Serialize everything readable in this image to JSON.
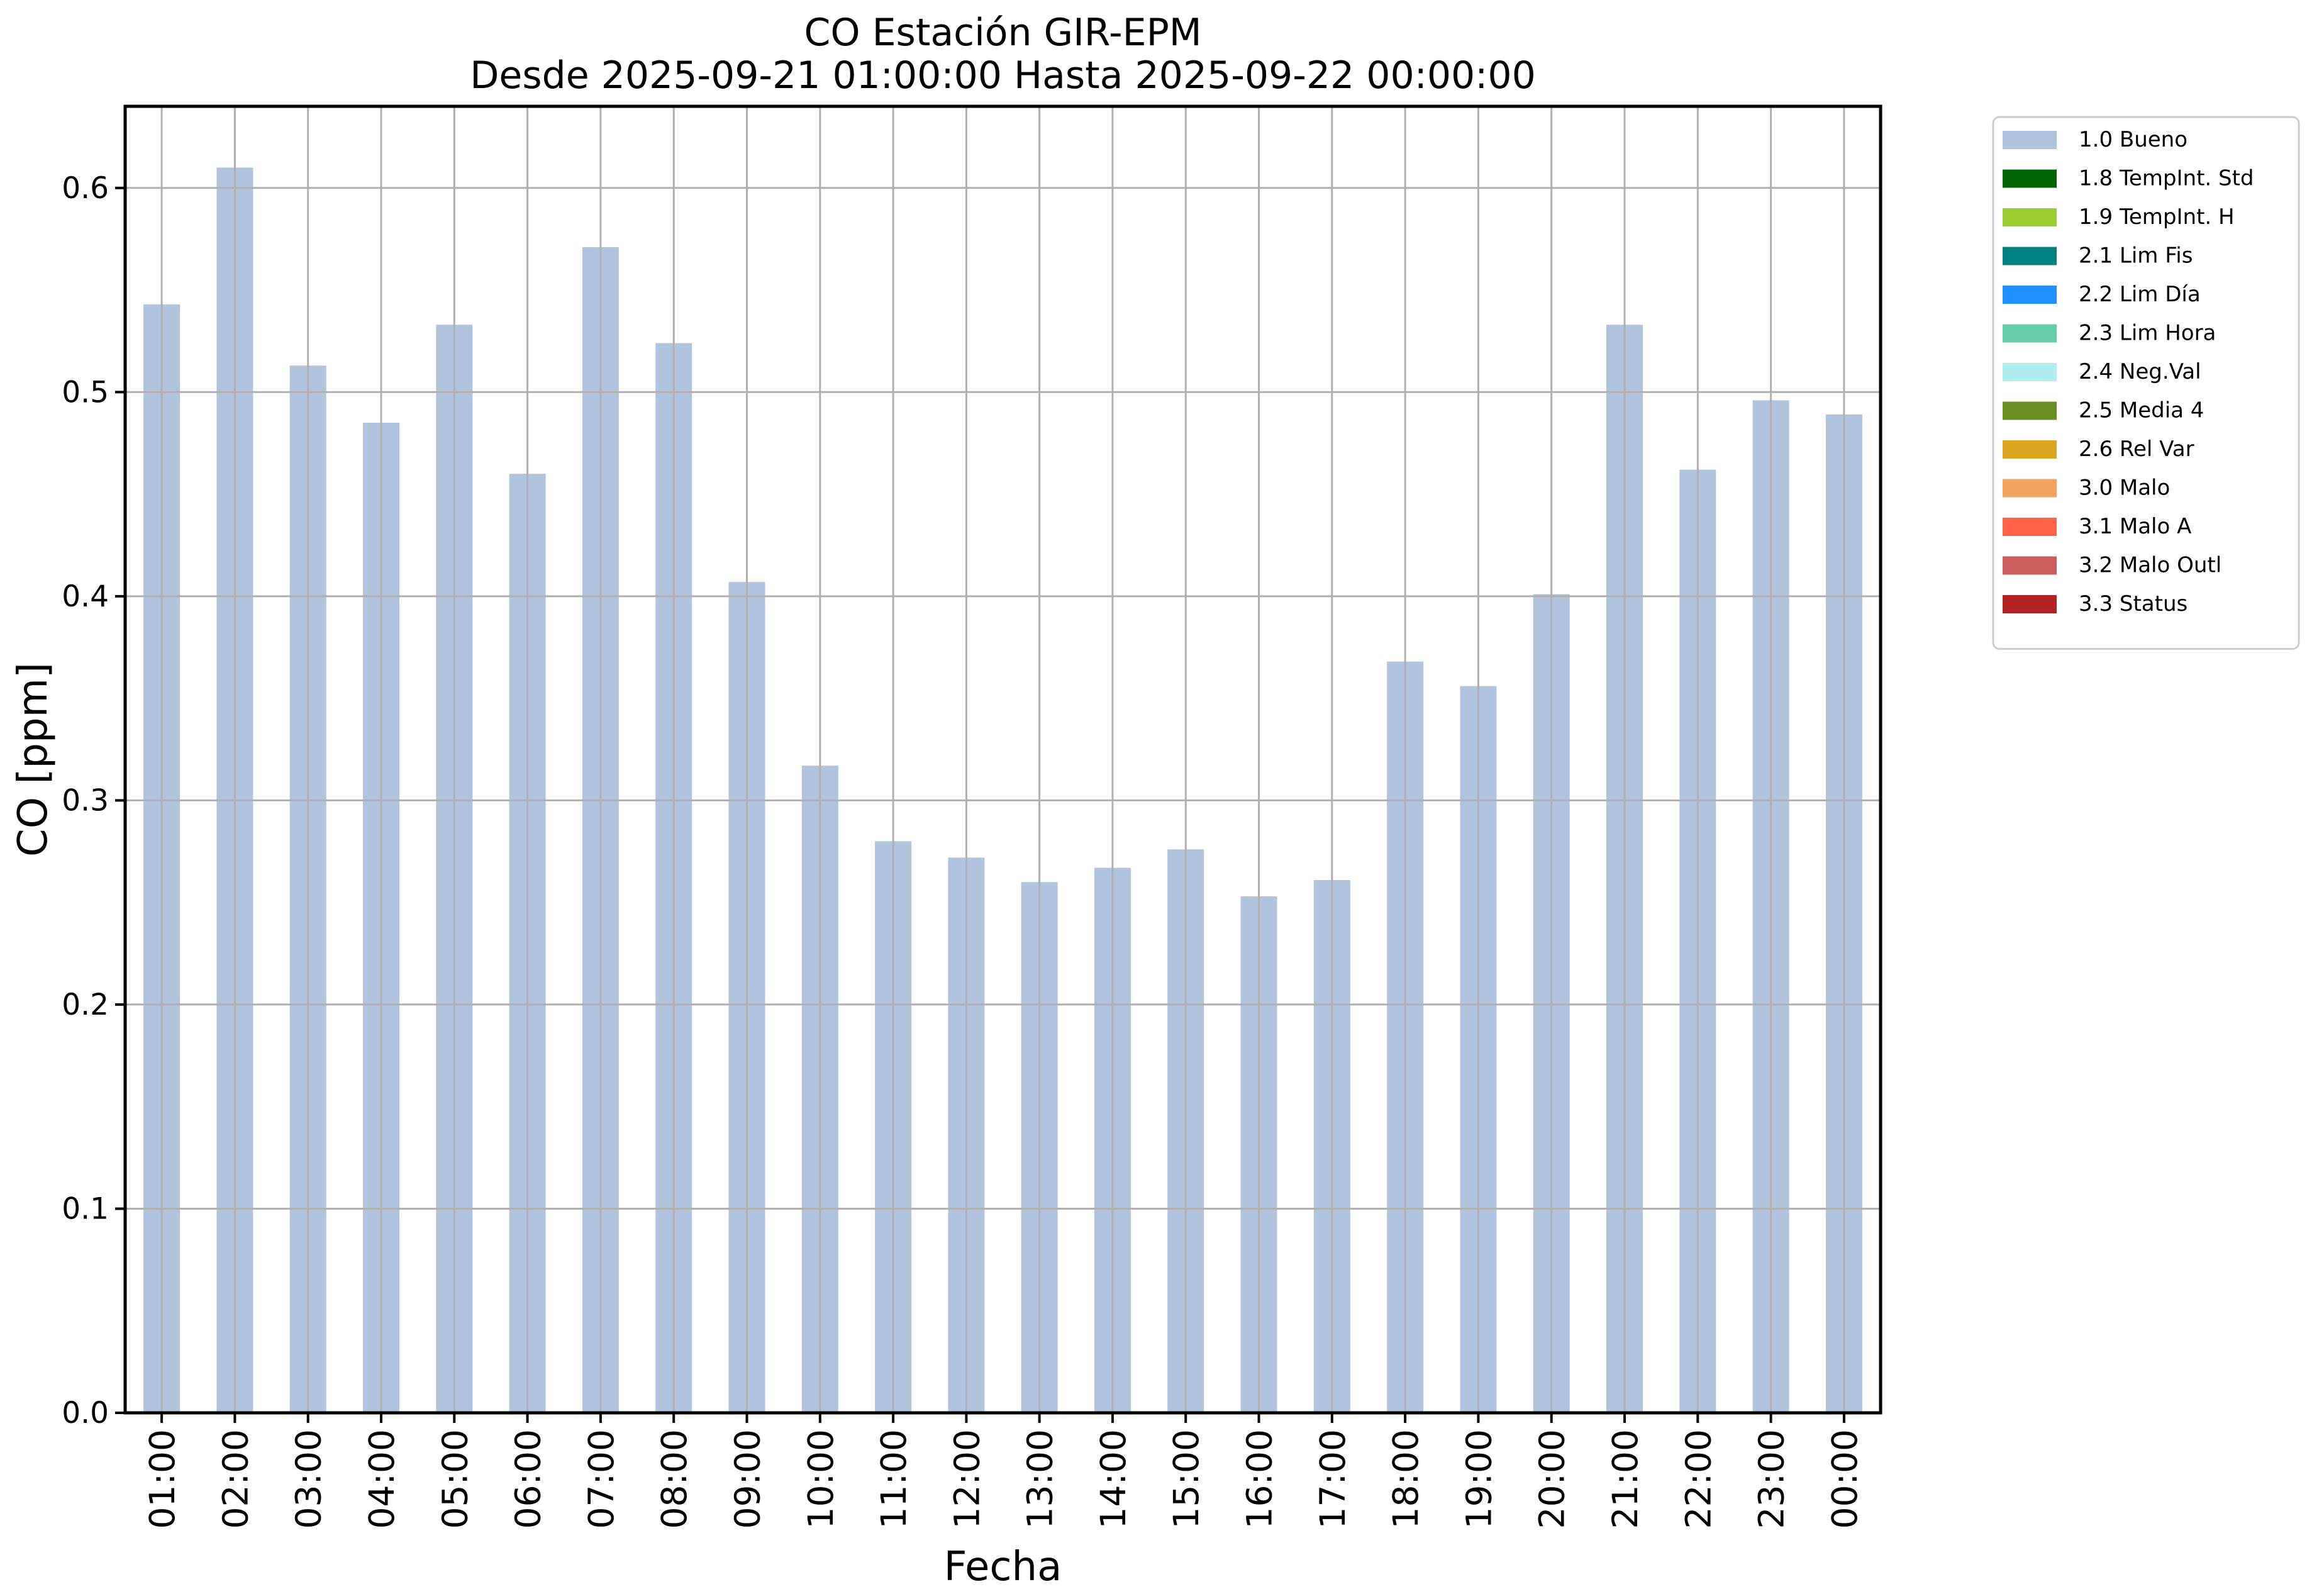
{
  "figure": {
    "title": "CO Estación GIR-EPM",
    "subtitle": "Desde 2025-09-21 01:00:00 Hasta 2025-09-22 00:00:00"
  },
  "chart_data": {
    "type": "bar",
    "title": "CO Estación GIR-EPM",
    "subtitle": "Desde 2025-09-21 01:00:00 Hasta 2025-09-22 00:00:00",
    "xlabel": "Fecha",
    "ylabel": "CO [ppm]",
    "categories": [
      "01:00",
      "02:00",
      "03:00",
      "04:00",
      "05:00",
      "06:00",
      "07:00",
      "08:00",
      "09:00",
      "10:00",
      "11:00",
      "12:00",
      "13:00",
      "14:00",
      "15:00",
      "16:00",
      "17:00",
      "18:00",
      "19:00",
      "20:00",
      "21:00",
      "22:00",
      "23:00",
      "00:00"
    ],
    "values": [
      0.543,
      0.61,
      0.513,
      0.485,
      0.533,
      0.46,
      0.571,
      0.524,
      0.407,
      0.317,
      0.28,
      0.272,
      0.26,
      0.267,
      0.276,
      0.253,
      0.261,
      0.368,
      0.356,
      0.401,
      0.533,
      0.462,
      0.496,
      0.489
    ],
    "series_flag": "1.0 Bueno",
    "bar_color": "#b0c4de",
    "ylim": [
      0,
      0.64
    ],
    "yticks": [
      0.0,
      0.1,
      0.2,
      0.3,
      0.4,
      0.5,
      0.6
    ],
    "grid": true,
    "legend_position": "outside-upper-right",
    "legend_items": [
      {
        "label": "1.0 Bueno",
        "color": "#b0c4de"
      },
      {
        "label": "1.8 TempInt. Std",
        "color": "#006400"
      },
      {
        "label": "1.9 TempInt. H",
        "color": "#9acd32"
      },
      {
        "label": "2.1 Lim Fis",
        "color": "#008080"
      },
      {
        "label": "2.2 Lim Día",
        "color": "#1e90ff"
      },
      {
        "label": "2.3 Lim Hora",
        "color": "#66cdaa"
      },
      {
        "label": "2.4 Neg.Val",
        "color": "#afeeee"
      },
      {
        "label": "2.5 Media 4",
        "color": "#6b8e23"
      },
      {
        "label": "2.6 Rel Var",
        "color": "#daa520"
      },
      {
        "label": "3.0 Malo",
        "color": "#f4a460"
      },
      {
        "label": "3.1 Malo A",
        "color": "#ff6347"
      },
      {
        "label": "3.2 Malo Outl",
        "color": "#cd5c5c"
      },
      {
        "label": "3.3 Status",
        "color": "#b22222"
      }
    ],
    "colors": {
      "grid": "#b0b0b0",
      "spine": "#000000",
      "text": "#000000",
      "background": "#ffffff",
      "legend_border": "#cccccc",
      "legend_background": "#ffffff"
    }
  }
}
